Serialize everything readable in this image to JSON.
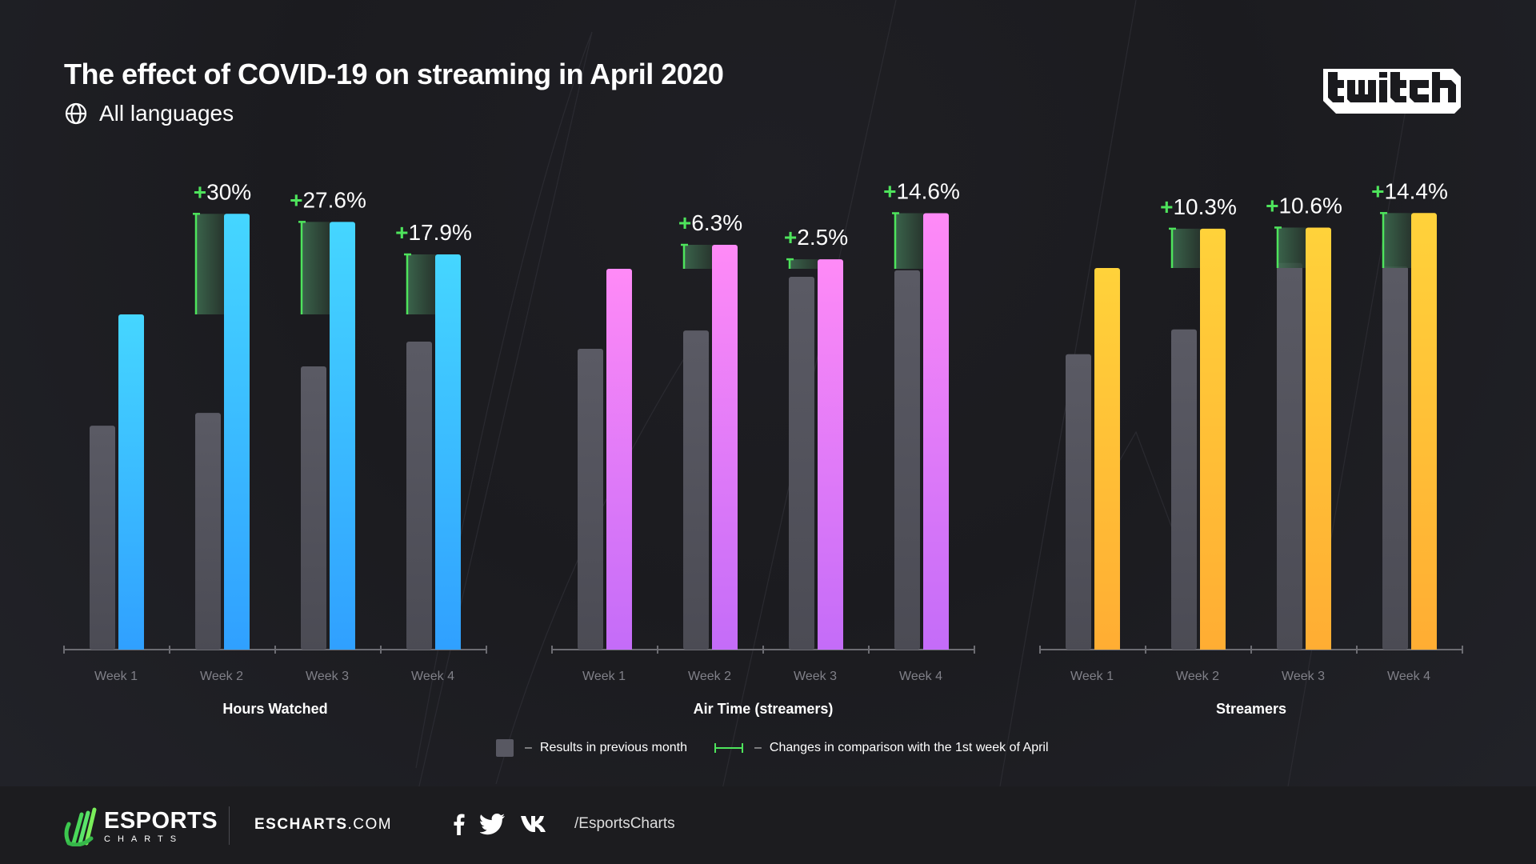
{
  "header": {
    "title": "The effect of COVID-19 on streaming in April 2020",
    "subtitle_icon": "globe-icon",
    "subtitle": "All languages",
    "brand_logo": "twitch"
  },
  "colors": {
    "previous_month": "#585862",
    "change_marker": "#4ee45c",
    "hours_watched": [
      "#45d6ff",
      "#30a0ff"
    ],
    "air_time": [
      "#ff8af7",
      "#c46cf8"
    ],
    "streamers": [
      "#ffd23a",
      "#ffad33"
    ]
  },
  "chart_data": [
    {
      "type": "bar",
      "title": "Hours Watched",
      "categories": [
        "Week 1",
        "Week 2",
        "Week 3",
        "Week 4"
      ],
      "series": [
        {
          "name": "Results in previous month",
          "values": [
            0.668,
            0.706,
            0.845,
            0.919
          ]
        },
        {
          "name": "April 2020",
          "values": [
            1.0,
            1.3,
            1.276,
            1.179
          ]
        }
      ],
      "change_labels": [
        null,
        "+30%",
        "+27.6%",
        "+17.9%"
      ],
      "value_units": "relative to April Week 1",
      "ylim": [
        0,
        1.35
      ]
    },
    {
      "type": "bar",
      "title": "Air Time (streamers)",
      "categories": [
        "Week 1",
        "Week 2",
        "Week 3",
        "Week 4"
      ],
      "series": [
        {
          "name": "Results in previous month",
          "values": [
            0.79,
            0.838,
            0.979,
            0.996
          ]
        },
        {
          "name": "April 2020",
          "values": [
            1.0,
            1.063,
            1.025,
            1.146
          ]
        }
      ],
      "change_labels": [
        null,
        "+6.3%",
        "+2.5%",
        "+14.6%"
      ],
      "value_units": "relative to April Week 1",
      "ylim": [
        0,
        1.19
      ]
    },
    {
      "type": "bar",
      "title": "Streamers",
      "categories": [
        "Week 1",
        "Week 2",
        "Week 3",
        "Week 4"
      ],
      "series": [
        {
          "name": "Results in previous month",
          "values": [
            0.774,
            0.839,
            1.013,
            1.004
          ]
        },
        {
          "name": "April 2020",
          "values": [
            1.0,
            1.103,
            1.106,
            1.144
          ]
        }
      ],
      "change_labels": [
        null,
        "+10.3%",
        "+10.6%",
        "+14.4%"
      ],
      "value_units": "relative to April Week 1",
      "ylim": [
        0,
        1.19
      ]
    }
  ],
  "legend": {
    "items": [
      {
        "icon": "gray-square",
        "label": "Results in previous month"
      },
      {
        "icon": "green-bracket",
        "label": "Changes in comparison with the 1st week of April"
      }
    ],
    "separator": "–"
  },
  "footer": {
    "brand_top": "ESPORTS",
    "brand_bottom": "CHARTS",
    "site_bold": "ESCHARTS",
    "site_rest": ".COM",
    "social_icons": [
      "facebook-icon",
      "twitter-icon",
      "vk-icon"
    ],
    "handle": "/EsportsCharts"
  }
}
